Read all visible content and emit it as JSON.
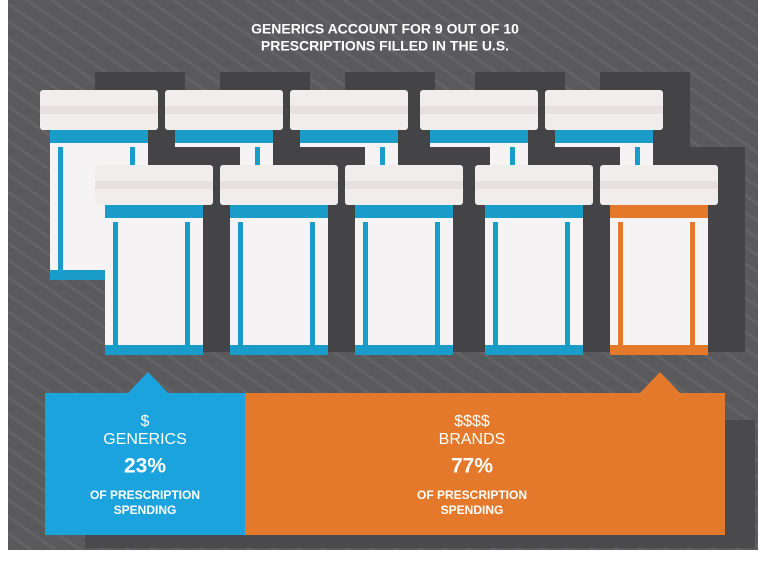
{
  "title": {
    "lines": [
      "GENERICS ACCOUNT FOR 9 OUT OF 10",
      "PRESCRIPTIONS FILLED IN THE U.S."
    ]
  },
  "panels": [
    {
      "symbol": "$",
      "label": "GENERICS",
      "value": "23%",
      "note": [
        "OF PRESCRIPTION",
        "SPENDING"
      ]
    },
    {
      "symbol": "$$$$",
      "label": "BRANDS",
      "value": "77%",
      "note": [
        "OF PRESCRIPTION",
        "SPENDING"
      ]
    }
  ]
}
